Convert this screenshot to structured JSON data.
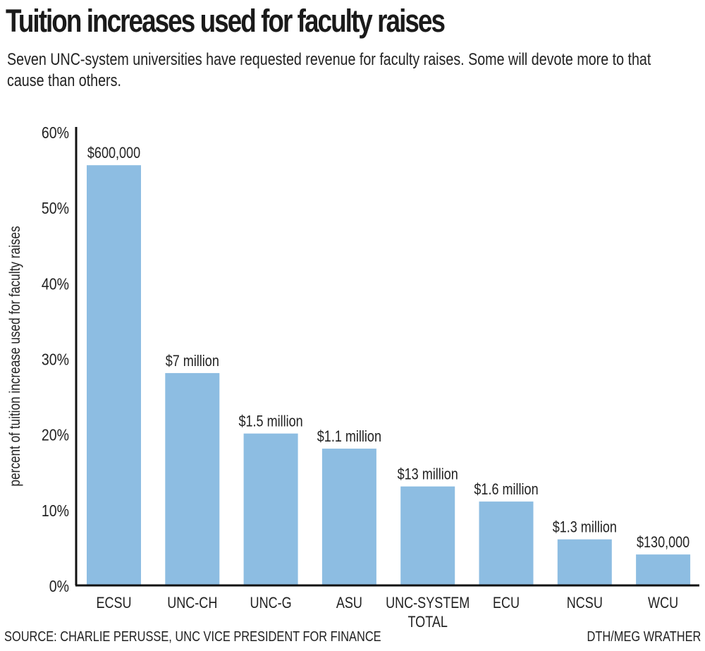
{
  "header": {
    "title": "Tuition increases used for faculty raises",
    "subtitle": "Seven UNC-system universities have requested revenue for faculty raises. Some will devote more to that cause than others."
  },
  "footer": {
    "source": "SOURCE: CHARLIE PERUSSE, UNC VICE PRESIDENT FOR FINANCE",
    "credit": "DTH/MEG WRATHER"
  },
  "chart_data": {
    "type": "bar",
    "title": "Tuition increases used for faculty raises",
    "xlabel": "",
    "ylabel": "percent of tuition increase used for faculty raises",
    "ylim": [
      0,
      60
    ],
    "yticks": [
      0,
      10,
      20,
      30,
      40,
      50,
      60
    ],
    "ytick_labels": [
      "0%",
      "10%",
      "20%",
      "30%",
      "40%",
      "50%",
      "60%"
    ],
    "grid": false,
    "bar_color": "#8dbde2",
    "categories": [
      [
        "ECSU"
      ],
      [
        "UNC-CH"
      ],
      [
        "UNC-G"
      ],
      [
        "ASU"
      ],
      [
        "UNC-SYSTEM",
        "TOTAL"
      ],
      [
        "ECU"
      ],
      [
        "NCSU"
      ],
      [
        "WCU"
      ]
    ],
    "values": [
      55.5,
      28,
      20,
      18,
      13,
      11,
      6,
      4
    ],
    "data_labels": [
      "$600,000",
      "$7 million",
      "$1.5 million",
      "$1.1 million",
      "$13 million",
      "$1.6 million",
      "$1.3 million",
      "$130,000"
    ]
  }
}
